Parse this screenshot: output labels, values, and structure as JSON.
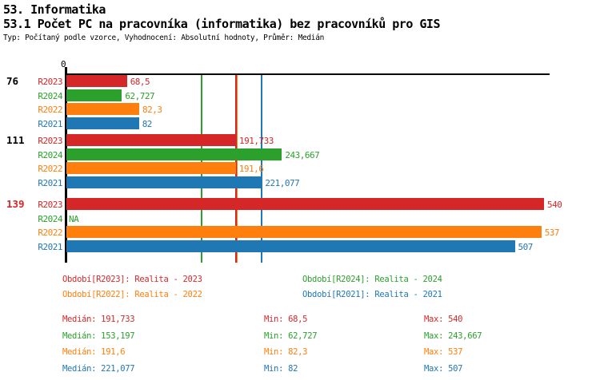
{
  "page": {
    "title1": "53. Informatika",
    "title2": "53.1 Počet PC na pracovníka (informatika) bez pracovníků pro GIS",
    "subtitle": "Typ: Počítaný podle vzorce, Vyhodnocení: Absolutní hodnoty, Průměr: Medián",
    "zero_label": "0"
  },
  "colors": {
    "R2023": "#d62728",
    "R2024": "#2ca02c",
    "R2022": "#ff7f0e",
    "R2021": "#1f77b4",
    "axis": "#000000"
  },
  "chart_data": {
    "type": "bar",
    "orientation": "horizontal",
    "title": "53.1 Počet PC na pracovníka (informatika) bez pracovníků pro GIS",
    "xlabel": "",
    "ylabel": "",
    "xlim": [
      0,
      547
    ],
    "grid": false,
    "series_order": [
      "R2023",
      "R2024",
      "R2022",
      "R2021"
    ],
    "groups": [
      {
        "label": "76",
        "label_color": "#000000",
        "bars": [
          {
            "series": "R2023",
            "value": 68.5,
            "label": "68,5"
          },
          {
            "series": "R2024",
            "value": 62.727,
            "label": "62,727"
          },
          {
            "series": "R2022",
            "value": 82.3,
            "label": "82,3"
          },
          {
            "series": "R2021",
            "value": 82,
            "label": "82"
          }
        ]
      },
      {
        "label": "111",
        "label_color": "#000000",
        "bars": [
          {
            "series": "R2023",
            "value": 191.733,
            "label": "191,733"
          },
          {
            "series": "R2024",
            "value": 243.667,
            "label": "243,667"
          },
          {
            "series": "R2022",
            "value": 191.6,
            "label": "191,6"
          },
          {
            "series": "R2021",
            "value": 221.077,
            "label": "221,077"
          }
        ]
      },
      {
        "label": "139",
        "label_color": "#d62728",
        "bars": [
          {
            "series": "R2023",
            "value": 540,
            "label": "540"
          },
          {
            "series": "R2024",
            "value": null,
            "label": "NA"
          },
          {
            "series": "R2022",
            "value": 537,
            "label": "537"
          },
          {
            "series": "R2021",
            "value": 507,
            "label": "507"
          }
        ]
      }
    ],
    "median_lines": [
      {
        "series": "R2024",
        "value": 153.197
      },
      {
        "series": "R2023",
        "value": 191.733
      },
      {
        "series": "R2022",
        "value": 191.6
      },
      {
        "series": "R2021",
        "value": 221.077
      }
    ]
  },
  "legend": [
    {
      "series": "R2023",
      "text": "Období[R2023]: Realita - 2023",
      "row": 0,
      "col": 0
    },
    {
      "series": "R2024",
      "text": "Období[R2024]: Realita - 2024",
      "row": 0,
      "col": 1
    },
    {
      "series": "R2022",
      "text": "Období[R2022]: Realita - 2022",
      "row": 1,
      "col": 0
    },
    {
      "series": "R2021",
      "text": "Období[R2021]: Realita - 2021",
      "row": 1,
      "col": 1
    }
  ],
  "stats": [
    {
      "series": "R2023",
      "median": "Medián: 191,733",
      "min": "Min: 68,5",
      "max": "Max: 540"
    },
    {
      "series": "R2024",
      "median": "Medián: 153,197",
      "min": "Min: 62,727",
      "max": "Max: 243,667"
    },
    {
      "series": "R2022",
      "median": "Medián: 191,6",
      "min": "Min: 82,3",
      "max": "Max: 537"
    },
    {
      "series": "R2021",
      "median": "Medián: 221,077",
      "min": "Min: 82",
      "max": "Max: 507"
    }
  ]
}
